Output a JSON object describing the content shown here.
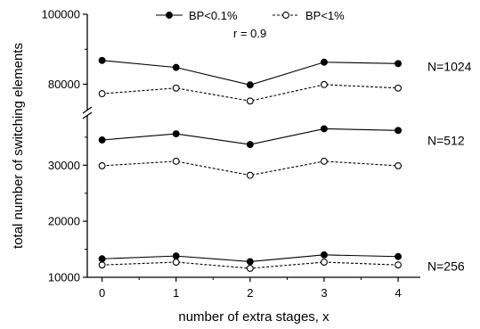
{
  "chart_data": {
    "type": "line",
    "xlabel": "number of extra stages, x",
    "ylabel": "total number of switching elements",
    "x": [
      0,
      1,
      2,
      3,
      4
    ],
    "xlim": [
      -0.2,
      4.3
    ],
    "x_ticks": [
      "0",
      "1",
      "2",
      "3",
      "4"
    ],
    "y_axis_broken": true,
    "upper_panel": {
      "ylim": [
        74000,
        100000
      ],
      "ticks": [
        "80000",
        "100000"
      ],
      "tick_values": [
        80000,
        100000
      ]
    },
    "lower_panel": {
      "ylim": [
        10000,
        38000
      ],
      "ticks": [
        "10000",
        "20000",
        "30000"
      ],
      "tick_values": [
        10000,
        20000,
        30000
      ]
    },
    "annotation": "r = 0.9",
    "legend": [
      {
        "label": "BP<0.1%",
        "style": "solid line, filled circle"
      },
      {
        "label": "BP<1%",
        "style": "dashed line, open circle"
      }
    ],
    "legend_placement": "top-center",
    "groups": [
      {
        "label": "N=1024",
        "panel": "upper",
        "series": [
          {
            "legend_index": 0,
            "values": [
              86800,
              84800,
              79800,
              86300,
              85900
            ]
          },
          {
            "legend_index": 1,
            "values": [
              77300,
              78900,
              75200,
              79900,
              78900
            ]
          }
        ]
      },
      {
        "label": "N=512",
        "panel": "lower",
        "series": [
          {
            "legend_index": 0,
            "values": [
              34500,
              35600,
              33700,
              36500,
              36200
            ]
          },
          {
            "legend_index": 1,
            "values": [
              29900,
              30700,
              28200,
              30700,
              29900
            ]
          }
        ]
      },
      {
        "label": "N=256",
        "panel": "lower",
        "series": [
          {
            "legend_index": 0,
            "values": [
              13300,
              13800,
              12800,
              14000,
              13700
            ]
          },
          {
            "legend_index": 1,
            "values": [
              12200,
              12700,
              11600,
              12700,
              12200
            ]
          }
        ]
      }
    ],
    "colors": {
      "line": "#000000",
      "background": "#ffffff"
    }
  }
}
